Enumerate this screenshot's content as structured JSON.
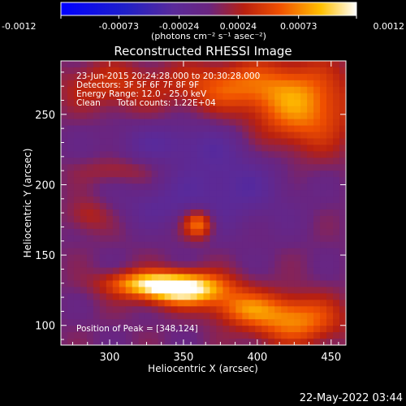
{
  "chart_data": {
    "type": "heatmap",
    "title": "Reconstructed RHESSI Image",
    "xlabel": "Heliocentric X (arcsec)",
    "ylabel": "Heliocentric Y (arcsec)",
    "xlim": [
      267,
      460
    ],
    "ylim": [
      86,
      288
    ],
    "x_ticks": [
      300,
      350,
      400,
      450
    ],
    "y_ticks": [
      100,
      150,
      200,
      250
    ],
    "colorbar": {
      "colormap": "blue-purple-red-yellow-white",
      "range": [
        -0.0012,
        0.0012
      ],
      "tick_labels": [
        "-0.0012",
        "-0.00073",
        "-0.00024",
        "0.00024",
        "0.00073",
        "0.0012"
      ],
      "tick_values": [
        -0.0012,
        -0.00073,
        -0.00024,
        0.00024,
        0.00073,
        0.0012
      ],
      "units_label": "(photons cm⁻² s⁻¹ asec⁻²)"
    },
    "annotations": {
      "time": "23-Jun-2015 20:24:28.000 to 20:30:28.000",
      "detectors": "Detectors: 3F 5F 6F 7F 8F 9F",
      "energy": "Energy Range: 12.0 - 25.0 keV",
      "clean": "Clean      Total counts: 1.22E+04",
      "peak": "Position of Peak = [348,124]"
    },
    "peak_position": [
      348,
      124
    ],
    "sources": [
      {
        "x": 350,
        "y": 126,
        "sx": 22,
        "sy": 8,
        "amp": 1.0
      },
      {
        "x": 322,
        "y": 130,
        "sx": 20,
        "sy": 6,
        "amp": 0.5
      },
      {
        "x": 390,
        "y": 112,
        "sx": 16,
        "sy": 8,
        "amp": 0.42
      },
      {
        "x": 425,
        "y": 104,
        "sx": 22,
        "sy": 12,
        "amp": 0.6
      },
      {
        "x": 360,
        "y": 172,
        "sx": 7,
        "sy": 7,
        "amp": 0.62
      },
      {
        "x": 430,
        "y": 255,
        "sx": 24,
        "sy": 22,
        "amp": 0.6
      },
      {
        "x": 380,
        "y": 270,
        "sx": 28,
        "sy": 12,
        "amp": 0.45
      },
      {
        "x": 300,
        "y": 270,
        "sx": 24,
        "sy": 12,
        "amp": 0.3
      },
      {
        "x": 305,
        "y": 210,
        "sx": 18,
        "sy": 6,
        "amp": 0.18
      },
      {
        "x": 285,
        "y": 178,
        "sx": 10,
        "sy": 8,
        "amp": 0.22
      },
      {
        "x": 340,
        "y": 230,
        "sx": 30,
        "sy": 10,
        "amp": -0.2
      },
      {
        "x": 380,
        "y": 200,
        "sx": 30,
        "sy": 22,
        "amp": -0.28
      },
      {
        "x": 330,
        "y": 185,
        "sx": 18,
        "sy": 10,
        "amp": -0.15
      }
    ]
  },
  "footer": {
    "timestamp": "22-May-2022 03:44"
  }
}
